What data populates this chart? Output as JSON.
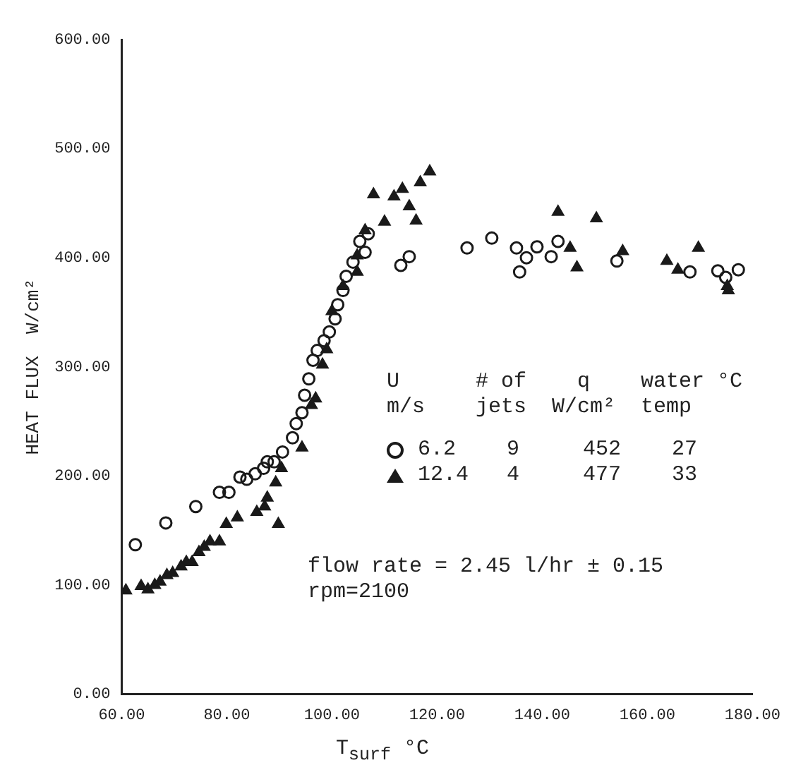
{
  "chart_data": {
    "type": "scatter",
    "xlabel": "T$_{surf}$ °C",
    "ylabel": "HEAT FLUX  W/cm²",
    "xlim": [
      60,
      180
    ],
    "xticks": [
      {
        "value": 60,
        "label": "60.00"
      },
      {
        "value": 80,
        "label": "80.00"
      },
      {
        "value": 100,
        "label": "100.00"
      },
      {
        "value": 120,
        "label": "120.00"
      },
      {
        "value": 140,
        "label": "140.00"
      },
      {
        "value": 160,
        "label": "160.00"
      },
      {
        "value": 180,
        "label": "180.00"
      }
    ],
    "ylim": [
      0,
      600
    ],
    "yticks": [
      {
        "value": 0,
        "label": "0.00"
      },
      {
        "value": 100,
        "label": "100.00"
      },
      {
        "value": 200,
        "label": "200.00"
      },
      {
        "value": 300,
        "label": "300.00"
      },
      {
        "value": 400,
        "label": "400.00"
      },
      {
        "value": 500,
        "label": "500.00"
      },
      {
        "value": 600,
        "label": "600.00"
      }
    ],
    "grid": false,
    "legend": "bottom right",
    "annotations": [
      "U      # of    q    water °C",
      "m/s    jets  W/cm²  temp",
      "flow rate = 2.45 l/hr ± 0.15",
      "rpm=2100"
    ],
    "series": [
      {
        "name": "6.2    9     452    27",
        "color": "#1a1a1a",
        "marker": "circle",
        "x": [
          62.6,
          68.4,
          74.1,
          78.6,
          80.4,
          82.5,
          83.8,
          85.4,
          87,
          89,
          87.7,
          90.6,
          92.5,
          93.2,
          94.3,
          94.8,
          95.6,
          96.4,
          97.2,
          98.5,
          99.5,
          100.6,
          101.1,
          102.1,
          102.7,
          104,
          105.3,
          106.9,
          106.3,
          113.1,
          114.7,
          125.7,
          130.4,
          135.1,
          137,
          139,
          135.7,
          143,
          141.7,
          154.2,
          168.1,
          173.4,
          174.9,
          177.3
        ],
        "values": [
          137,
          157,
          172,
          185,
          185,
          199,
          197,
          202,
          207,
          213,
          213,
          222,
          235,
          248,
          258,
          274,
          289,
          306,
          315,
          324,
          332,
          344,
          357,
          370,
          383,
          396,
          415,
          422,
          405,
          393,
          401,
          409,
          418,
          409,
          400,
          410,
          387,
          415,
          401,
          397,
          387,
          388,
          382,
          389
        ]
      },
      {
        "name": "12.4   4     477    33",
        "color": "#1a1a1a",
        "marker": "triangle",
        "x": [
          60.8,
          63.7,
          65,
          66.3,
          67.3,
          68.6,
          69.7,
          71.3,
          72.3,
          73.4,
          74.7,
          75.7,
          76.8,
          78.6,
          79.9,
          82,
          85.7,
          89.8,
          87.2,
          87.7,
          89.3,
          90.4,
          94.3,
          96.1,
          96.9,
          98.2,
          99,
          100,
          102.1,
          104.8,
          104.8,
          106.3,
          110,
          107.9,
          111.8,
          113.4,
          114.7,
          116,
          116.8,
          118.6,
          143,
          150.3,
          145.3,
          146.6,
          155.3,
          163.7,
          165.8,
          169.7,
          175.2,
          175.4
        ],
        "values": [
          95,
          99,
          96,
          100,
          103,
          109,
          111,
          117,
          121,
          121,
          130,
          135,
          140,
          140,
          156,
          162,
          167,
          156,
          172,
          180,
          194,
          207,
          226,
          265,
          271,
          302,
          316,
          351,
          374,
          387,
          402,
          425,
          433,
          458,
          456,
          463,
          447,
          434,
          469,
          479,
          442,
          436,
          409,
          391,
          406,
          397,
          389,
          409,
          374,
          370
        ]
      }
    ]
  }
}
